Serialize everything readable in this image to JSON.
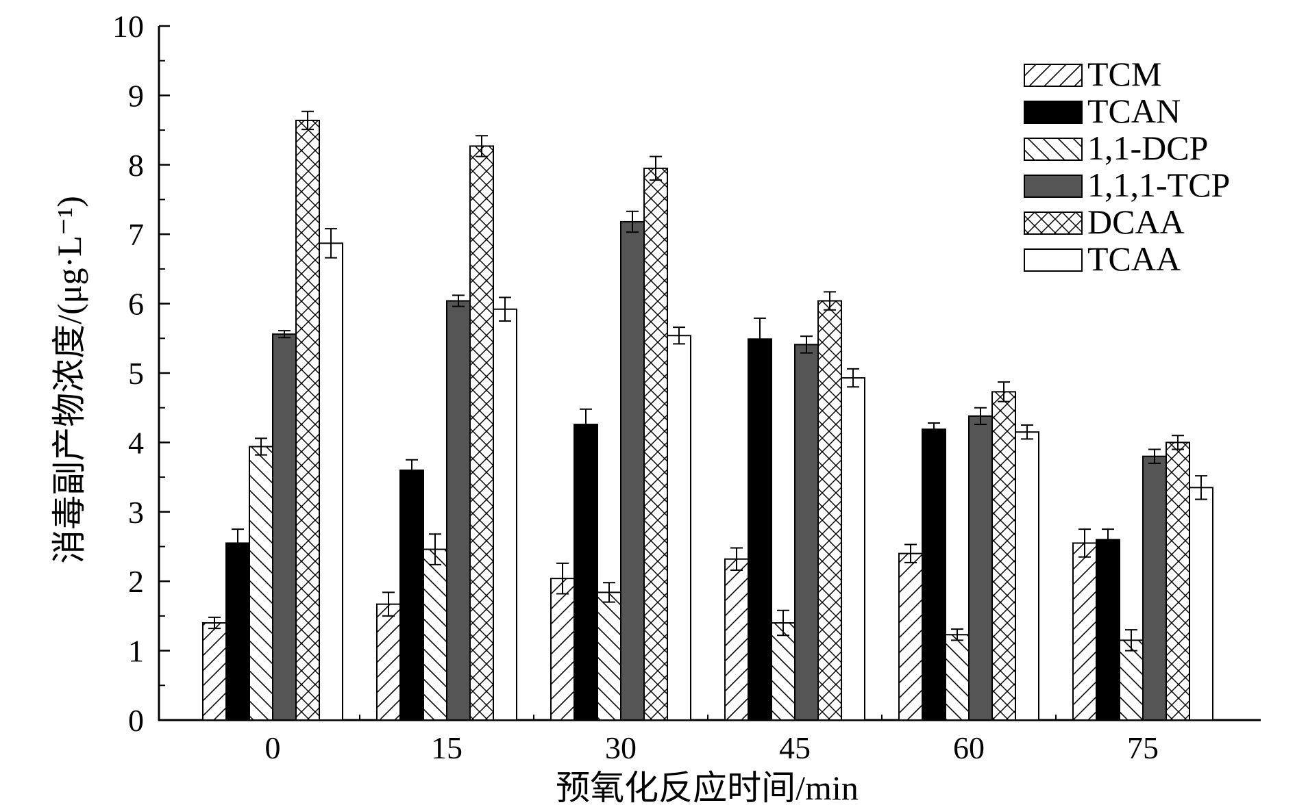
{
  "chart_data": {
    "type": "bar",
    "xlabel": "预氧化反应时间/min",
    "ylabel": "消毒副产物浓度/(μg·L⁻¹)",
    "ylim": [
      0,
      10
    ],
    "yticks": [
      "0",
      "1",
      "2",
      "3",
      "4",
      "5",
      "6",
      "7",
      "8",
      "9",
      "10"
    ],
    "categories": [
      "0",
      "15",
      "30",
      "45",
      "60",
      "75"
    ],
    "legend_position": "top-right",
    "grid": false,
    "series": [
      {
        "name": "TCM",
        "pattern": "hatch-diagonal-up",
        "values": [
          1.4,
          1.67,
          2.04,
          2.32,
          2.4,
          2.55
        ],
        "errors": [
          0.08,
          0.17,
          0.22,
          0.16,
          0.13,
          0.2
        ]
      },
      {
        "name": "TCAN",
        "pattern": "solid-black",
        "values": [
          2.55,
          3.6,
          4.26,
          5.49,
          4.19,
          2.6
        ],
        "errors": [
          0.2,
          0.15,
          0.22,
          0.3,
          0.09,
          0.15
        ]
      },
      {
        "name": "1,1-DCP",
        "pattern": "hatch-diagonal-down",
        "values": [
          3.94,
          2.46,
          1.84,
          1.4,
          1.23,
          1.15
        ],
        "errors": [
          0.12,
          0.22,
          0.14,
          0.18,
          0.08,
          0.15
        ]
      },
      {
        "name": "1,1,1-TCP",
        "pattern": "solid-gray",
        "values": [
          5.56,
          6.04,
          7.18,
          5.41,
          4.38,
          3.8
        ],
        "errors": [
          0.05,
          0.08,
          0.15,
          0.12,
          0.12,
          0.1
        ]
      },
      {
        "name": "DCAA",
        "pattern": "crosshatch",
        "values": [
          8.64,
          8.27,
          7.95,
          6.04,
          4.73,
          4.0
        ],
        "errors": [
          0.13,
          0.15,
          0.17,
          0.13,
          0.14,
          0.1
        ]
      },
      {
        "name": "TCAA",
        "pattern": "white",
        "values": [
          6.87,
          5.92,
          5.54,
          4.93,
          4.15,
          3.35
        ],
        "errors": [
          0.21,
          0.17,
          0.12,
          0.13,
          0.1,
          0.17
        ]
      }
    ]
  }
}
